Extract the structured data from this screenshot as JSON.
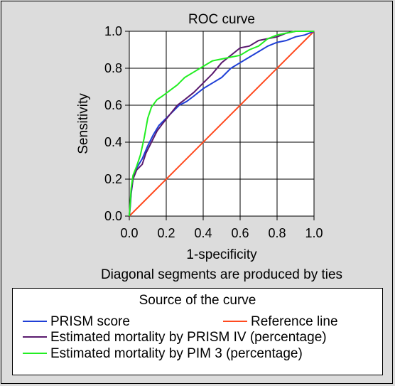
{
  "chart_data": {
    "type": "line",
    "title": "ROC curve",
    "xlabel": "1-specificity",
    "ylabel": "Sensitivity",
    "note": "Diagonal segments are produced by ties",
    "xlim": [
      0,
      1
    ],
    "ylim": [
      0,
      1
    ],
    "xticks": [
      "0.0",
      "0.2",
      "0.4",
      "0.6",
      "0.8",
      "1.0"
    ],
    "yticks": [
      "0.0",
      "0.2",
      "0.4",
      "0.6",
      "0.8",
      "1.0"
    ],
    "grid": true,
    "legend_title": "Source of the curve",
    "series": [
      {
        "name": "PRISM score",
        "color": "#1f3fd6",
        "x": [
          0.0,
          0.005,
          0.01,
          0.02,
          0.04,
          0.07,
          0.1,
          0.13,
          0.16,
          0.2,
          0.24,
          0.27,
          0.31,
          0.35,
          0.4,
          0.45,
          0.5,
          0.55,
          0.6,
          0.65,
          0.7,
          0.75,
          0.8,
          0.85,
          0.9,
          0.95,
          1.0
        ],
        "y": [
          0.0,
          0.05,
          0.12,
          0.2,
          0.26,
          0.31,
          0.38,
          0.44,
          0.49,
          0.53,
          0.57,
          0.6,
          0.62,
          0.65,
          0.69,
          0.72,
          0.75,
          0.8,
          0.83,
          0.86,
          0.89,
          0.92,
          0.94,
          0.95,
          0.97,
          0.98,
          1.0
        ]
      },
      {
        "name": "Reference line",
        "color": "#ff4a1f",
        "x": [
          0.0,
          1.0
        ],
        "y": [
          0.0,
          1.0
        ]
      },
      {
        "name": "Estimated mortality by PRISM IV (percentage)",
        "color": "#5a1a6e",
        "x": [
          0.0,
          0.005,
          0.01,
          0.02,
          0.04,
          0.07,
          0.09,
          0.12,
          0.15,
          0.18,
          0.22,
          0.26,
          0.3,
          0.35,
          0.4,
          0.45,
          0.5,
          0.55,
          0.6,
          0.65,
          0.7,
          0.75,
          0.8,
          0.85,
          0.9,
          0.95,
          1.0
        ],
        "y": [
          0.0,
          0.06,
          0.13,
          0.2,
          0.25,
          0.28,
          0.34,
          0.4,
          0.46,
          0.5,
          0.55,
          0.6,
          0.63,
          0.67,
          0.72,
          0.77,
          0.83,
          0.87,
          0.91,
          0.92,
          0.95,
          0.96,
          0.97,
          0.99,
          1.0,
          1.0,
          1.0
        ]
      },
      {
        "name": "Estimated mortality by PIM 3 (percentage)",
        "color": "#22ee22",
        "x": [
          0.0,
          0.005,
          0.01,
          0.02,
          0.04,
          0.06,
          0.08,
          0.1,
          0.12,
          0.15,
          0.18,
          0.22,
          0.26,
          0.3,
          0.35,
          0.4,
          0.45,
          0.5,
          0.55,
          0.6,
          0.65,
          0.7,
          0.75,
          0.8,
          0.85,
          0.9,
          0.95,
          1.0
        ],
        "y": [
          0.0,
          0.07,
          0.15,
          0.22,
          0.27,
          0.33,
          0.42,
          0.53,
          0.59,
          0.63,
          0.65,
          0.68,
          0.71,
          0.75,
          0.78,
          0.81,
          0.84,
          0.85,
          0.86,
          0.87,
          0.9,
          0.92,
          0.96,
          0.98,
          0.99,
          1.0,
          1.0,
          1.0
        ]
      }
    ]
  }
}
